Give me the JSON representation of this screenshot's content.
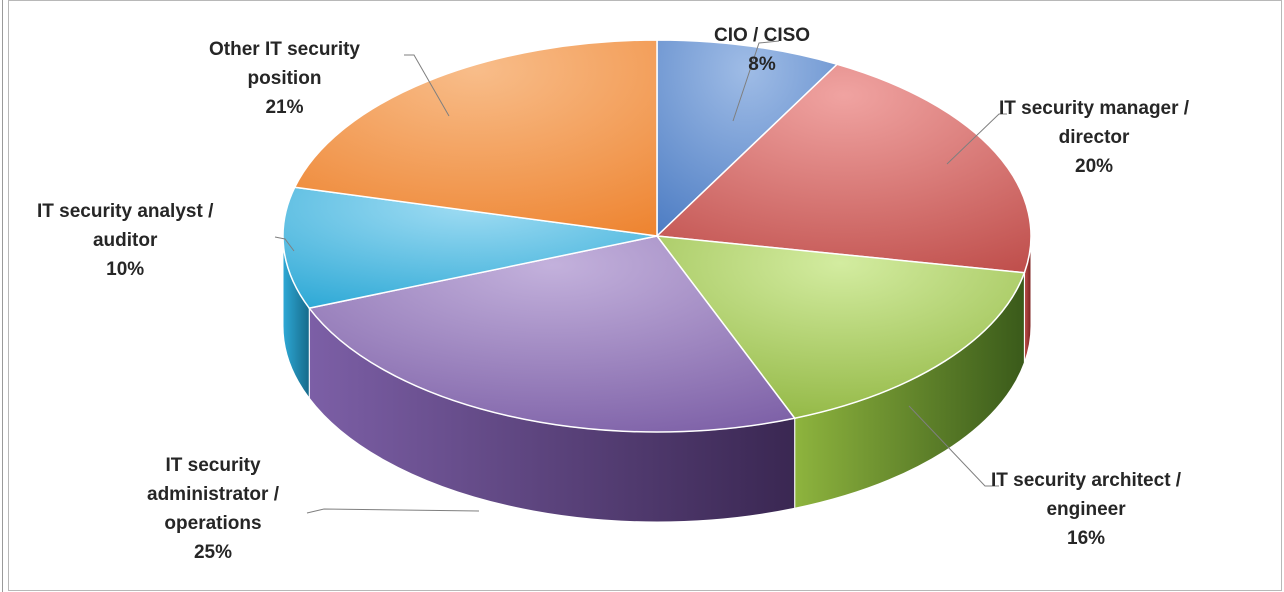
{
  "chart_data": {
    "type": "pie",
    "style": "3d-exploded-none",
    "title": "",
    "slices": [
      {
        "label_lines": [
          "CIO / CISO"
        ],
        "percent_text": "8%",
        "value": 8,
        "color": "#4f7ec4",
        "light": "#9fbce6",
        "side": "#2f4f80"
      },
      {
        "label_lines": [
          "IT security manager /",
          "director"
        ],
        "percent_text": "20%",
        "value": 20,
        "color": "#c0504d",
        "light": "#f0a3a1",
        "side": "#7a2220"
      },
      {
        "label_lines": [
          "IT security architect /",
          "engineer"
        ],
        "percent_text": "16%",
        "value": 16,
        "color": "#8eb43e",
        "light": "#d3eca0",
        "side": "#3a5a1a"
      },
      {
        "label_lines": [
          "IT security",
          "administrator /",
          "operations"
        ],
        "percent_text": "25%",
        "value": 25,
        "color": "#7c5fa6",
        "light": "#c3b1dc",
        "side": "#3a2752"
      },
      {
        "label_lines": [
          "IT security analyst /",
          "auditor"
        ],
        "percent_text": "10%",
        "value": 10,
        "color": "#2ea9d6",
        "light": "#9fdcf3",
        "side": "#166a8a"
      },
      {
        "label_lines": [
          "Other IT security",
          "position"
        ],
        "percent_text": "21%",
        "value": 21,
        "color": "#ee8532",
        "light": "#f8bd8a",
        "side": "#9a4f14"
      }
    ],
    "legend": "none",
    "data_labels": "outside-with-leader-lines"
  }
}
